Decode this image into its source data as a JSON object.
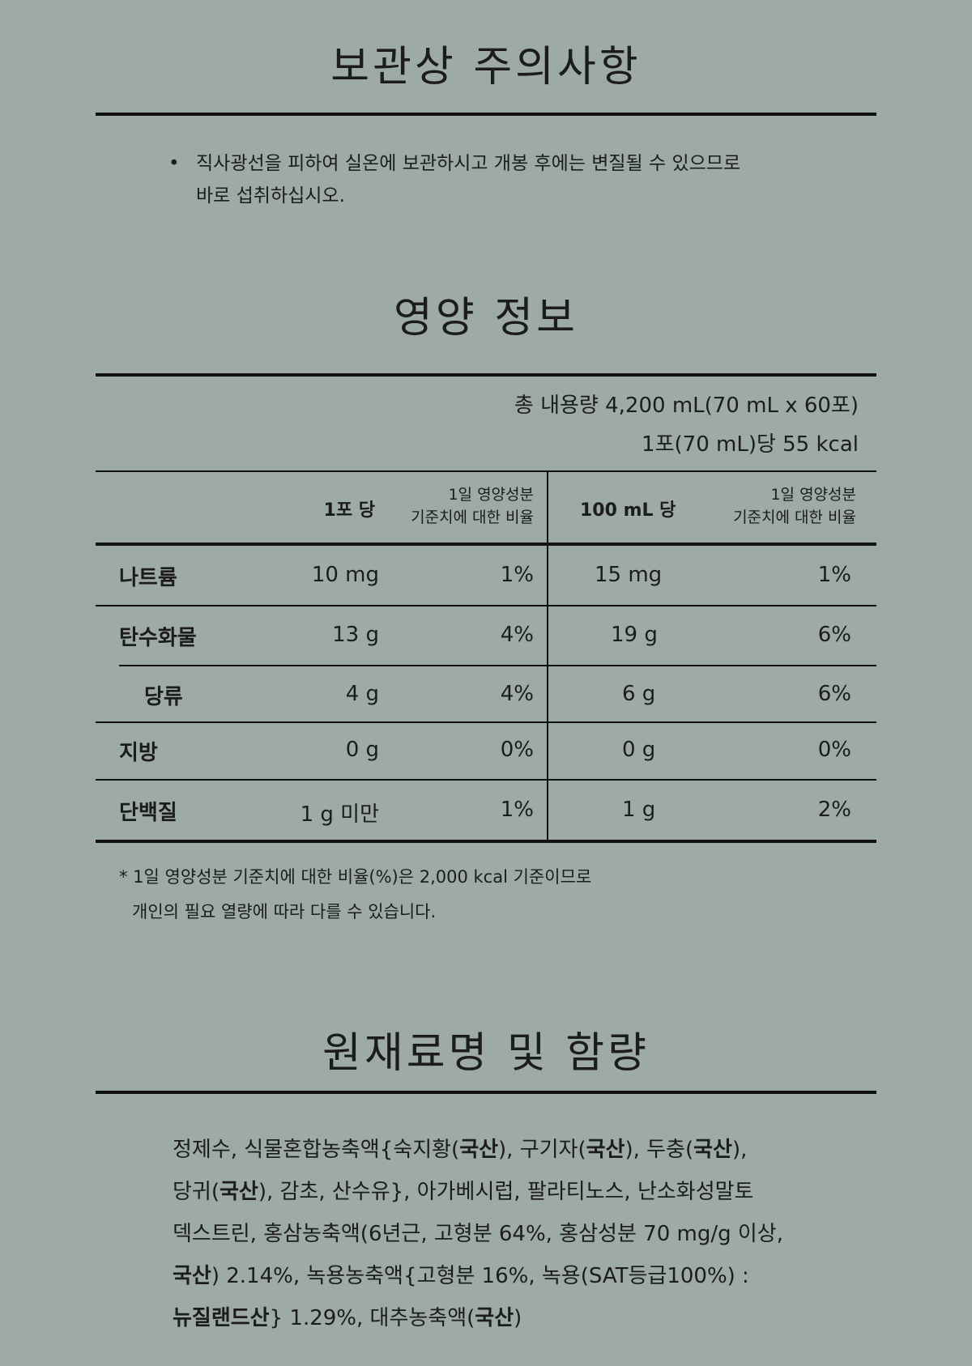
{
  "storage": {
    "title": "보관상 주의사항",
    "bullet": "•",
    "text_line1": "직사광선을 피하여 실온에 보관하시고 개봉 후에는 변질될 수 있으므로",
    "text_line2": "바로 섭취하십시오."
  },
  "nutrition": {
    "title": "영양 정보",
    "total_content": "총 내용량 4,200 mL(70 mL x 60포)",
    "per_serving_kcal": "1포(70 mL)당 55 kcal",
    "headers": {
      "per_pack": "1포 당",
      "ratio_line1": "1일 영양성분",
      "ratio_line2": "기준치에 대한 비율",
      "per_100ml": "100 mL 당"
    },
    "rows": [
      {
        "name": "나트륨",
        "per_pack": "10 mg",
        "pack_pct": "1%",
        "per_100ml": "15 mg",
        "ml_pct": "1%"
      },
      {
        "name": "탄수화물",
        "per_pack": "13 g",
        "pack_pct": "4%",
        "per_100ml": "19 g",
        "ml_pct": "6%"
      },
      {
        "name": "당류",
        "per_pack": "4 g",
        "pack_pct": "4%",
        "per_100ml": "6 g",
        "ml_pct": "6%"
      },
      {
        "name": "지방",
        "per_pack": "0 g",
        "pack_pct": "0%",
        "per_100ml": "0 g",
        "ml_pct": "0%"
      },
      {
        "name": "단백질",
        "per_pack": "1 g 미만",
        "pack_pct": "1%",
        "per_100ml": "1 g",
        "ml_pct": "2%"
      }
    ],
    "footnote_line1": "* 1일 영양성분 기준치에 대한 비율(%)은 2,000 kcal 기준이므로",
    "footnote_line2": "개인의 필요 열량에 따라 다를 수 있습니다."
  },
  "ingredients": {
    "title": "원재료명 및 함량",
    "p1": "정제수, 식물혼합농축액{숙지황(",
    "origin": "국산",
    "p2": "), 구기자(",
    "p3": "), 두충(",
    "p4": "),",
    "p5": "당귀(",
    "p6": "), 감초, 산수유}, 아가베시럽, 팔라티노스, 난소화성말토",
    "p7": "덱스트린, 홍삼농축액(6년근, 고형분 64%, 홍삼성분 70 mg/g 이상,",
    "p8": ") 2.14%, 녹용농축액{고형분 16%, 녹용(SAT등급100%) :",
    "nz_origin": "뉴질랜드산",
    "p9": "} 1.29%, 대추농축액(",
    "p10": ")"
  }
}
